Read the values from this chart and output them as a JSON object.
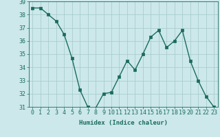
{
  "x": [
    0,
    1,
    2,
    3,
    4,
    5,
    6,
    7,
    8,
    9,
    10,
    11,
    12,
    13,
    14,
    15,
    16,
    17,
    18,
    19,
    20,
    21,
    22,
    23
  ],
  "y": [
    38.5,
    38.5,
    38.0,
    37.5,
    36.5,
    34.7,
    32.3,
    31.0,
    30.9,
    32.0,
    32.1,
    33.3,
    34.5,
    33.8,
    35.0,
    36.3,
    36.8,
    35.5,
    36.0,
    36.8,
    34.5,
    33.0,
    31.8,
    31.0
  ],
  "line_color": "#1a6b5e",
  "marker": "s",
  "marker_size": 2.2,
  "bg_color": "#cce8ea",
  "grid_color": "#aaccce",
  "xlabel": "Humidex (Indice chaleur)",
  "ylim": [
    31,
    39
  ],
  "xlim_min": -0.5,
  "xlim_max": 23.5,
  "yticks": [
    31,
    32,
    33,
    34,
    35,
    36,
    37,
    38,
    39
  ],
  "xticks": [
    0,
    1,
    2,
    3,
    4,
    5,
    6,
    7,
    8,
    9,
    10,
    11,
    12,
    13,
    14,
    15,
    16,
    17,
    18,
    19,
    20,
    21,
    22,
    23
  ],
  "tick_color": "#1a6b5e",
  "label_fontsize": 6.5,
  "tick_fontsize": 6,
  "line_width": 1.0
}
